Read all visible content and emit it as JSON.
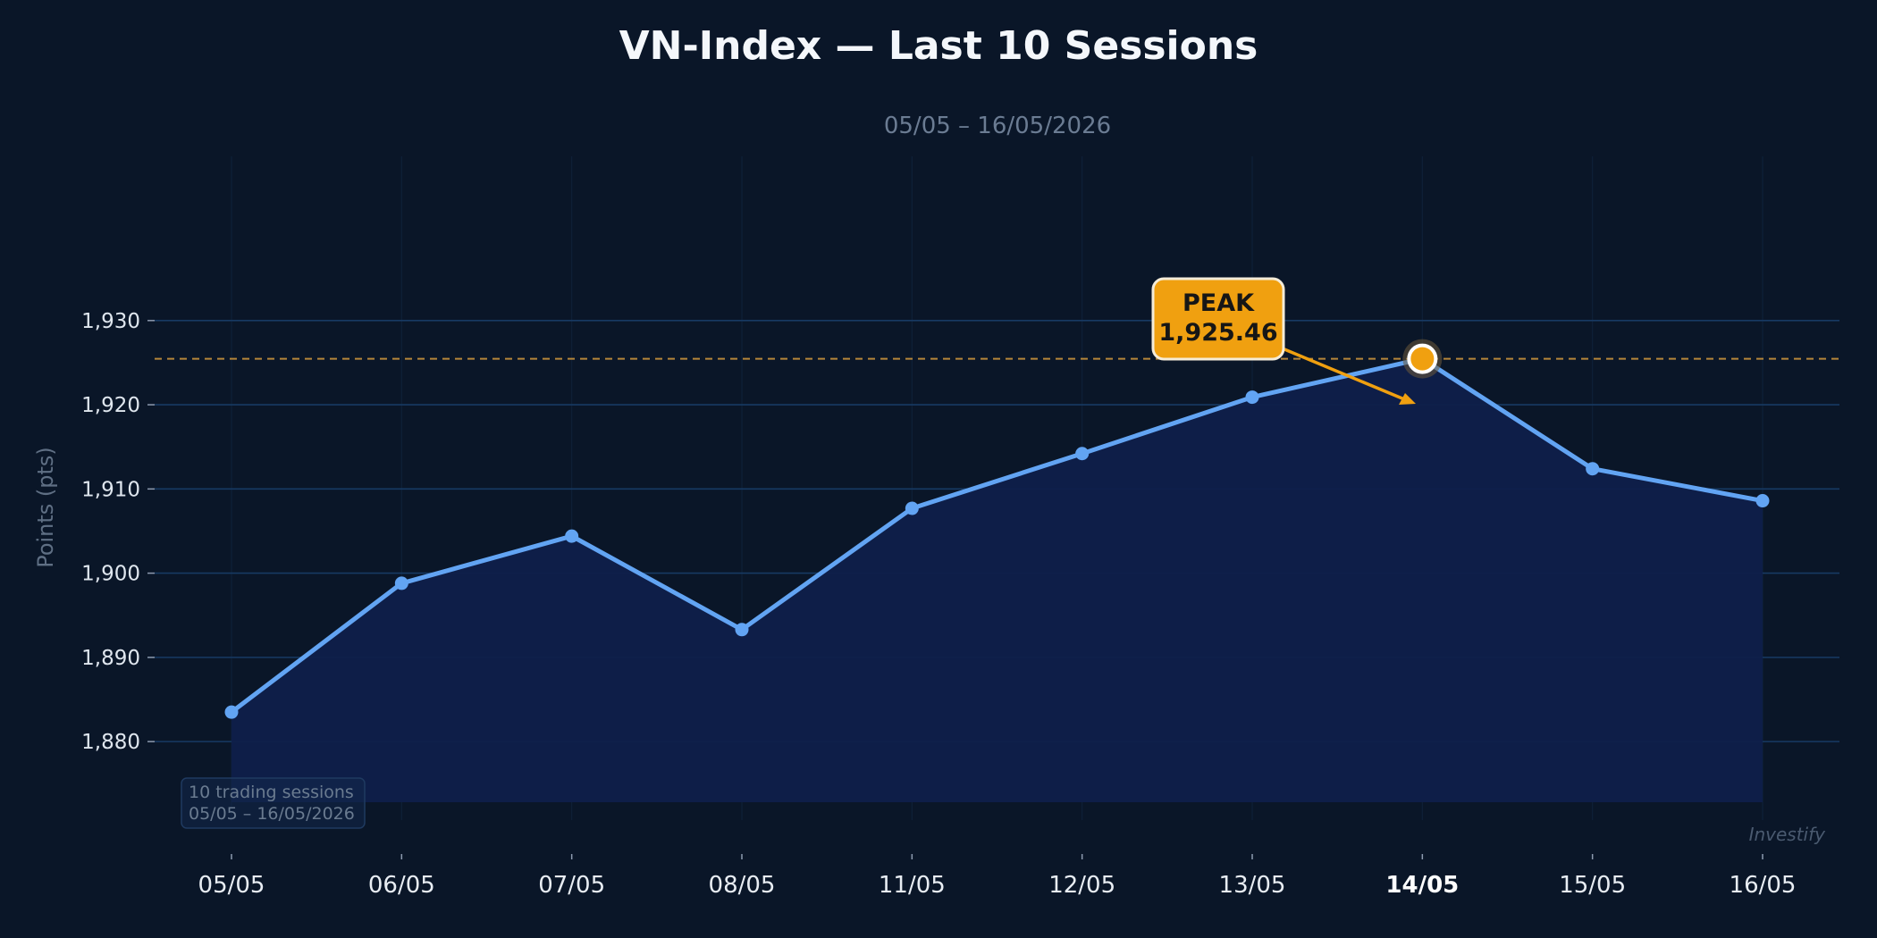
{
  "chart_data": {
    "type": "line",
    "title": "VN-Index — Last 10 Sessions",
    "subtitle": "05/05 – 16/05/2026",
    "xlabel": "",
    "ylabel": "Points (pts)",
    "categories": [
      "05/05",
      "06/05",
      "07/05",
      "08/05",
      "11/05",
      "12/05",
      "13/05",
      "14/05",
      "15/05",
      "16/05"
    ],
    "series": [
      {
        "values": [
          1883.5,
          1898.8,
          1904.4,
          1893.3,
          1907.7,
          1914.2,
          1920.9,
          1925.46,
          1912.4,
          1908.6
        ]
      }
    ],
    "ylim": [
      1872.8,
      1949.5
    ],
    "yticks": [
      1880,
      1890,
      1900,
      1910,
      1920,
      1930
    ],
    "ytick_labels": [
      "1,880",
      "1,890",
      "1,900",
      "1,910",
      "1,920",
      "1,930"
    ],
    "area_fill": true,
    "grid": "horizontal",
    "highlight_category": "14/05",
    "peak": {
      "index": 7,
      "label_top": "PEAK",
      "label_value": "1,925.46",
      "value": 1925.46,
      "reference_line": true
    },
    "annotations": [
      "10 trading sessions",
      "05/05 – 16/05/2026"
    ],
    "watermark": "Investify"
  },
  "colors": {
    "background": "#0a1628",
    "line": "#62a4f3",
    "area": "#0f1f4a",
    "grid": "#173a63",
    "peak": "#f0a010",
    "reference": "#b6873a",
    "text": "#eaf0f7",
    "muted": "#6b7c93"
  }
}
